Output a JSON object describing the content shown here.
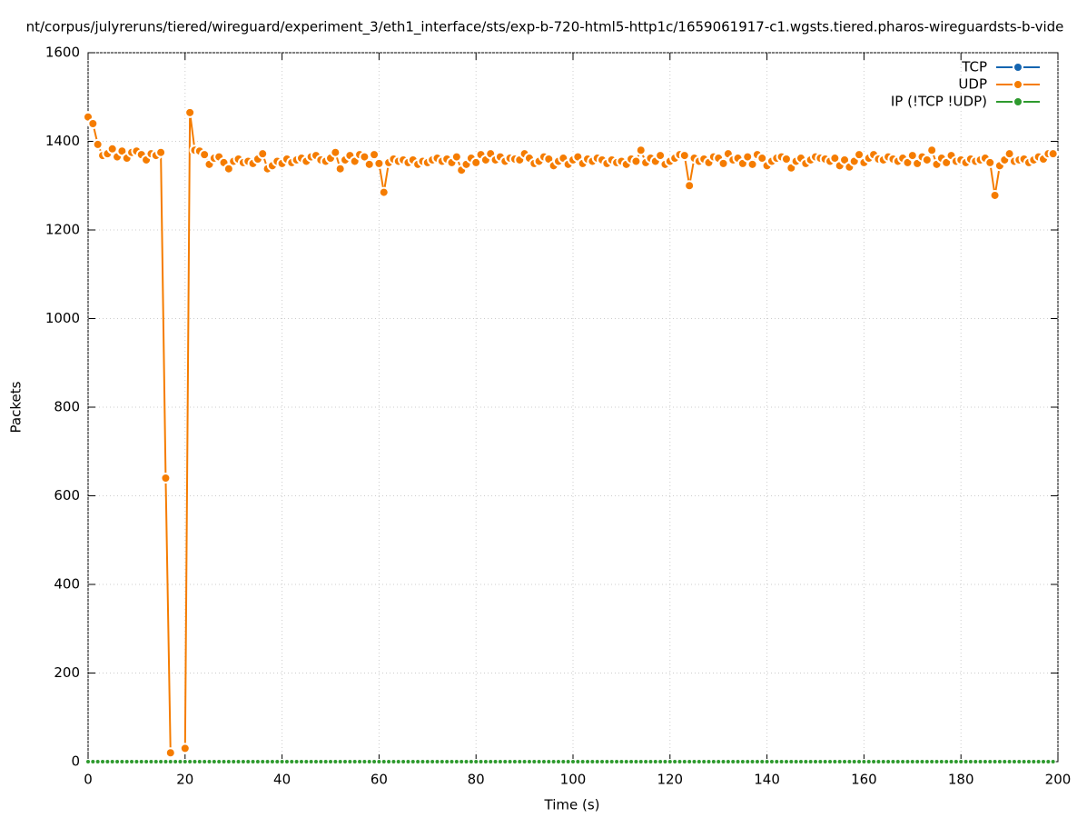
{
  "chart_data": {
    "type": "line",
    "title": "nt/corpus/julyreruns/tiered/wireguard/experiment_3/eth1_interface/sts/exp-b-720-html5-http1c/1659061917-c1.wgsts.tiered.pharos-wireguardsts-b-vide",
    "x_label": "Time (s)",
    "y_label": "Packets",
    "xlim": [
      0,
      200
    ],
    "ylim": [
      0,
      1600
    ],
    "xticks": [
      0,
      20,
      40,
      60,
      80,
      100,
      120,
      140,
      160,
      180,
      200
    ],
    "yticks": [
      0,
      200,
      400,
      600,
      800,
      1000,
      1200,
      1400,
      1600
    ],
    "grid": true,
    "legend": "top-right",
    "x": [
      0,
      1,
      2,
      3,
      4,
      5,
      6,
      7,
      8,
      9,
      10,
      11,
      12,
      13,
      14,
      15,
      16,
      17,
      18,
      19,
      20,
      21,
      22,
      23,
      24,
      25,
      26,
      27,
      28,
      29,
      30,
      31,
      32,
      33,
      34,
      35,
      36,
      37,
      38,
      39,
      40,
      41,
      42,
      43,
      44,
      45,
      46,
      47,
      48,
      49,
      50,
      51,
      52,
      53,
      54,
      55,
      56,
      57,
      58,
      59,
      60,
      61,
      62,
      63,
      64,
      65,
      66,
      67,
      68,
      69,
      70,
      71,
      72,
      73,
      74,
      75,
      76,
      77,
      78,
      79,
      80,
      81,
      82,
      83,
      84,
      85,
      86,
      87,
      88,
      89,
      90,
      91,
      92,
      93,
      94,
      95,
      96,
      97,
      98,
      99,
      100,
      101,
      102,
      103,
      104,
      105,
      106,
      107,
      108,
      109,
      110,
      111,
      112,
      113,
      114,
      115,
      116,
      117,
      118,
      119,
      120,
      121,
      122,
      123,
      124,
      125,
      126,
      127,
      128,
      129,
      130,
      131,
      132,
      133,
      134,
      135,
      136,
      137,
      138,
      139,
      140,
      141,
      142,
      143,
      144,
      145,
      146,
      147,
      148,
      149,
      150,
      151,
      152,
      153,
      154,
      155,
      156,
      157,
      158,
      159,
      160,
      161,
      162,
      163,
      164,
      165,
      166,
      167,
      168,
      169,
      170,
      171,
      172,
      173,
      174,
      175,
      176,
      177,
      178,
      179,
      180,
      181,
      182,
      183,
      184,
      185,
      186,
      187,
      188,
      189,
      190,
      191,
      192,
      193,
      194,
      195,
      196,
      197,
      198,
      199
    ],
    "series": [
      {
        "name": "TCP",
        "color": "#1565b0",
        "values": [
          0,
          0,
          0,
          0,
          0,
          0,
          0,
          0,
          0,
          0,
          0,
          0,
          0,
          0,
          0,
          0,
          0,
          0,
          0,
          0,
          0,
          0,
          0,
          0,
          0,
          0,
          0,
          0,
          0,
          0,
          0,
          0,
          0,
          0,
          0,
          0,
          0,
          0,
          0,
          0,
          0,
          0,
          0,
          0,
          0,
          0,
          0,
          0,
          0,
          0,
          0,
          0,
          0,
          0,
          0,
          0,
          0,
          0,
          0,
          0,
          0,
          0,
          0,
          0,
          0,
          0,
          0,
          0,
          0,
          0,
          0,
          0,
          0,
          0,
          0,
          0,
          0,
          0,
          0,
          0,
          0,
          0,
          0,
          0,
          0,
          0,
          0,
          0,
          0,
          0,
          0,
          0,
          0,
          0,
          0,
          0,
          0,
          0,
          0,
          0,
          0,
          0,
          0,
          0,
          0,
          0,
          0,
          0,
          0,
          0,
          0,
          0,
          0,
          0,
          0,
          0,
          0,
          0,
          0,
          0,
          0,
          0,
          0,
          0,
          0,
          0,
          0,
          0,
          0,
          0,
          0,
          0,
          0,
          0,
          0,
          0,
          0,
          0,
          0,
          0,
          0,
          0,
          0,
          0,
          0,
          0,
          0,
          0,
          0,
          0,
          0,
          0,
          0,
          0,
          0,
          0,
          0,
          0,
          0,
          0,
          0,
          0,
          0,
          0,
          0,
          0,
          0,
          0,
          0,
          0,
          0,
          0,
          0,
          0,
          0,
          0,
          0,
          0,
          0,
          0,
          0,
          0,
          0,
          0,
          0,
          0,
          0,
          0,
          0,
          0,
          0,
          0,
          0,
          0,
          0,
          0,
          0,
          0,
          0,
          0
        ]
      },
      {
        "name": "UDP",
        "color": "#f57c00",
        "values": [
          1455,
          1440,
          1393,
          1368,
          1372,
          1383,
          1365,
          1378,
          1362,
          1375,
          1378,
          1370,
          1358,
          1372,
          1368,
          1375,
          640,
          20,
          null,
          null,
          30,
          1465,
          1380,
          1378,
          1370,
          1348,
          1362,
          1365,
          1352,
          1338,
          1355,
          1360,
          1352,
          1355,
          1350,
          1360,
          1372,
          1338,
          1345,
          1355,
          1350,
          1360,
          1352,
          1358,
          1362,
          1355,
          1365,
          1368,
          1358,
          1355,
          1362,
          1375,
          1338,
          1358,
          1368,
          1355,
          1370,
          1365,
          1348,
          1370,
          1350,
          1285,
          1352,
          1360,
          1355,
          1358,
          1352,
          1358,
          1348,
          1355,
          1352,
          1358,
          1362,
          1355,
          1360,
          1352,
          1365,
          1335,
          1348,
          1362,
          1352,
          1370,
          1358,
          1372,
          1358,
          1365,
          1355,
          1362,
          1360,
          1358,
          1372,
          1362,
          1350,
          1355,
          1365,
          1360,
          1345,
          1355,
          1362,
          1348,
          1358,
          1365,
          1350,
          1360,
          1355,
          1362,
          1358,
          1350,
          1358,
          1352,
          1355,
          1348,
          1360,
          1355,
          1380,
          1352,
          1362,
          1355,
          1368,
          1348,
          1355,
          1362,
          1370,
          1368,
          1300,
          1362,
          1355,
          1360,
          1352,
          1365,
          1362,
          1350,
          1372,
          1358,
          1362,
          1350,
          1365,
          1348,
          1370,
          1362,
          1345,
          1355,
          1362,
          1365,
          1360,
          1340,
          1355,
          1362,
          1350,
          1358,
          1365,
          1362,
          1360,
          1355,
          1362,
          1345,
          1358,
          1342,
          1355,
          1370,
          1352,
          1362,
          1370,
          1360,
          1358,
          1365,
          1360,
          1355,
          1362,
          1352,
          1368,
          1350,
          1365,
          1358,
          1380,
          1348,
          1362,
          1352,
          1368,
          1355,
          1358,
          1352,
          1360,
          1355,
          1358,
          1362,
          1352,
          1278,
          1345,
          1358,
          1372,
          1355,
          1358,
          1360,
          1352,
          1358,
          1365,
          1360,
          1372,
          1372
        ]
      },
      {
        "name": "IP (!TCP  !UDP)",
        "color": "#2e9a2e",
        "values": [
          0,
          0,
          0,
          0,
          0,
          0,
          0,
          0,
          0,
          0,
          0,
          0,
          0,
          0,
          0,
          0,
          0,
          0,
          0,
          0,
          0,
          0,
          0,
          0,
          0,
          0,
          0,
          0,
          0,
          0,
          0,
          0,
          0,
          0,
          0,
          0,
          0,
          0,
          0,
          0,
          0,
          0,
          0,
          0,
          0,
          0,
          0,
          0,
          0,
          0,
          0,
          0,
          0,
          0,
          0,
          0,
          0,
          0,
          0,
          0,
          0,
          0,
          0,
          0,
          0,
          0,
          0,
          0,
          0,
          0,
          0,
          0,
          0,
          0,
          0,
          0,
          0,
          0,
          0,
          0,
          0,
          0,
          0,
          0,
          0,
          0,
          0,
          0,
          0,
          0,
          0,
          0,
          0,
          0,
          0,
          0,
          0,
          0,
          0,
          0,
          0,
          0,
          0,
          0,
          0,
          0,
          0,
          0,
          0,
          0,
          0,
          0,
          0,
          0,
          0,
          0,
          0,
          0,
          0,
          0,
          0,
          0,
          0,
          0,
          0,
          0,
          0,
          0,
          0,
          0,
          0,
          0,
          0,
          0,
          0,
          0,
          0,
          0,
          0,
          0,
          0,
          0,
          0,
          0,
          0,
          0,
          0,
          0,
          0,
          0,
          0,
          0,
          0,
          0,
          0,
          0,
          0,
          0,
          0,
          0,
          0,
          0,
          0,
          0,
          0,
          0,
          0,
          0,
          0,
          0,
          0,
          0,
          0,
          0,
          0,
          0,
          0,
          0,
          0,
          0,
          0,
          0,
          0,
          0,
          0,
          0,
          0,
          0,
          0,
          0,
          0,
          0,
          0,
          0,
          0,
          0,
          0,
          0,
          0,
          0
        ]
      }
    ]
  }
}
